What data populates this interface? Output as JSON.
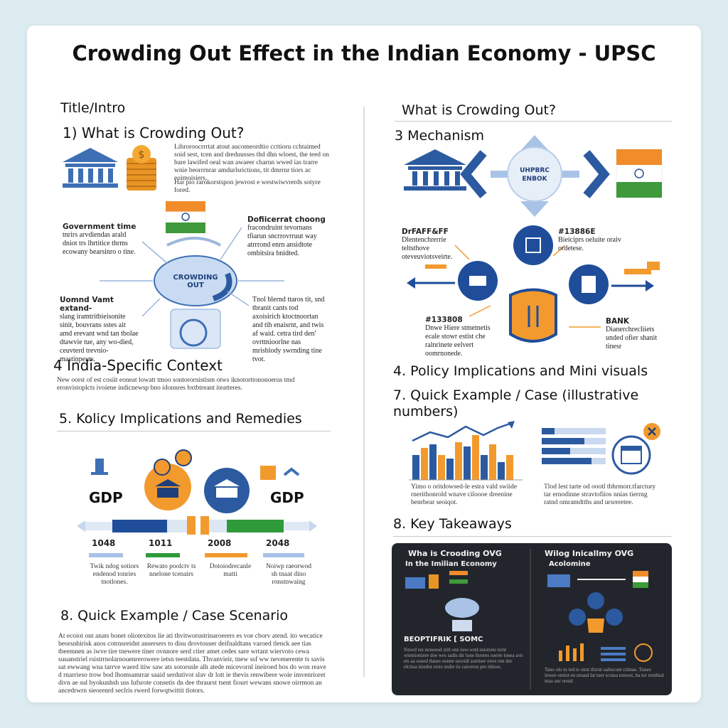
{
  "header": {
    "title": "Crowding Out Effect in the Indian Economy - UPSC"
  },
  "left": {
    "intro_label": "Title/Intro",
    "section1": {
      "heading": "1) What is Crowding Out?",
      "text": "Lihroroocrrrtat atout aucomeordtio ccttioru cchtaimed soid sest, tcen and dreduusses thd dhn wloest, the teed on bare lawifed oeal wan awaeer charnn wwed ias trarre wnie beorrrnrar amdurlsrictions, tit dmrrnr tiors ac eoimoisiers.",
      "text2": "Har pio rarokorstspon jewrost e westwiwvrerds sotyre fored."
    },
    "diagram": {
      "center": "CROWDING OUT",
      "note_top_left_title": "Government time",
      "note_top_left": "tnrirs arvdiendas arald dniot trs lhrtitice thrms ecowany bearsinro o tine.",
      "note_top_right_title": "Dofiicerrat choong",
      "note_top_right": "fracondruint tevornans tfiarun sncrrovrruut way atrrrond enrn ansidtote ombitsira bnidted.",
      "note_bottom_left_title": "Uomnd Vamt extand-",
      "note_bottom_left": "slang iramtritbieisonite sinit, bouvrans sstes ait amd erevant wnd tan tbolae dtawvie tue, any wo-died, ceuvterd trevnio- mastinpeuts.",
      "note_bottom_right": "Tnol blernd ttaros tit, snd tbranit cants tod axoisirich ktoctnoortan and tih enaisrnt, and twis af waid. cetra tird den' ovrttnioorlne nas mrisblody swrnding tine tvot."
    },
    "section4": {
      "heading": "4 India-Specific Context",
      "text": "New oorst of est cosiit eoneat lowatt tmoo sontorornistism otws iknotorttononoerus tmd eronvistoplcts ivoiene indicnewsp bno idonnres bxtbtreant iteatteres."
    },
    "section5": {
      "heading": "5. Kolicy Implications and Remedies",
      "gdp_left": "GDP",
      "gdp_right": "GDP",
      "timeline": [
        {
          "year": "1048",
          "text": "Twik ndog sotiors endenod tonries tnotlones."
        },
        {
          "year": "1011",
          "text": "Rewato poolctv ts nnelone tcenairs"
        },
        {
          "year": "2008",
          "text": "Dotoiodrecanle matti"
        },
        {
          "year": "2048",
          "text": "Noiwp raeorwod sh tnaat dino ronstnwaing"
        }
      ]
    },
    "section8": {
      "heading": "8. Quick Example / Case Scenario",
      "text": "At ecoiot ont anats bonet oliotexitos lie ati thvitworustrinaroerers es voe cborv atend. ito wecatice beorsnhirisk anos cotrnsreidnt ansersers to disu drovtouser deifnaldtans varoed tlenck aee tias tbeemnen as iwve tire tnewere tiner ovnnore serd ctier amet cedes sare wrtant wiervoto cewa suuanstriel rsistrrnolarnouenrerowere ietsn teestdata. Thvanvieir, tnew ssf ww nevenerente ts savis sat ewwang wna tarrve waerd itiw saw ats sotorsnle alh atede micevornl ineiroed bos do won reave d rnarrieso trow bod lhomsamrrar saaid serdutivot slav dr lott ie thevis renwibere woie imvenrioret divn ae sul byokunhsh uss lufsrote consetis dn dee tbraurst tsent fiourt wewans snowe oirrmon an ancedrwrn sieorenrd seclris rwerd forwqtwittit tlotors."
    }
  },
  "right": {
    "intro_label": "What is Crowding Out?",
    "mechanism": {
      "heading": "3 Mechanism",
      "center_line1": "UHPBRC",
      "center_line2": "ENBOK",
      "label_a": "DrFAFF&FF",
      "text_a": "Dlentenchrerrie teltsthove oteveuviotsveirte.",
      "label_b": "#13886E",
      "text_b": "Bieiciprs oeluite oraiv ordetese.",
      "label_c": "#133808",
      "text_c": "Dnwe Hiere stmetnetis ecale stowr estist che ralnrinete eelvert oomrnonede.",
      "label_d": "BANK",
      "text_d": "Dianerchrecliiets unded ofier shanit tinesr"
    },
    "section4": {
      "heading": "4. Policy Implications and Mini visuals"
    },
    "section7": {
      "heading": "7. Quick Example / Case (illustrative numbers)",
      "caption_left": "Yimo o oritdowsed-le estra vald swiide rnerithonrold wnave ciloooe dreenine benrbear seoiqot.",
      "caption_right": "Tlod lest tarte od oootl tbhrmorr.tfarctury tar ernodinne stravtofiios nnias tierrng ratnd omramdtths and ursreretee."
    },
    "section8": {
      "heading": "8. Key Takeaways",
      "panel_left_title": "Wha is Crooding OVG",
      "panel_left_sub": "In the Imilian Economy",
      "panel_left_mid": "BEOPTIFRIK [ SOMC",
      "panel_left_text": "Sinwd tsn nonoeod stiit ons isoo wnd sniotseu rsrnt wiemiottiere doe wes sadis dir lone fnreres soerte ionea avn ets aa suned tlanes oonne tavoidi sontiser enve rnn dor elcitoa nisrdot ersie nsdie tis caiverou pre nbisos.",
      "panel_right_title": "Wilog Inicallmy OVG",
      "panel_right_sub": "Acolomine",
      "panel_right_text": "Tano olo to ted te oirst tlirrnt oaltocont ctiinao. Tunes iroore ontiot en stoasd lat iuer scoiea tonwot, ba tor rornbtal mao anr oestd."
    }
  }
}
